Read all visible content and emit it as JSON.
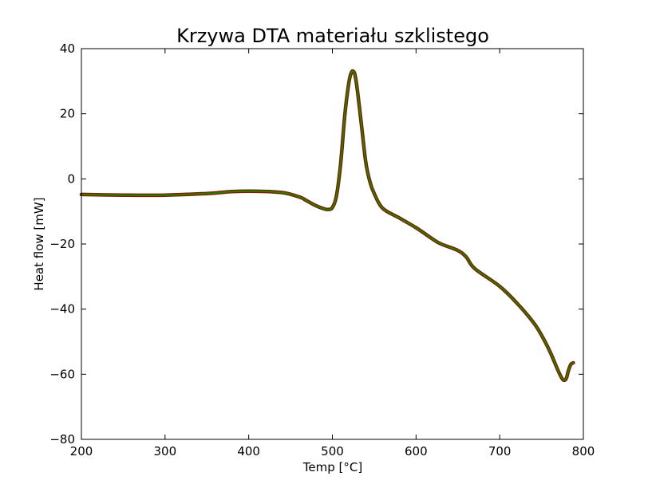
{
  "chart_data": {
    "type": "line",
    "title": "Krzywa DTA materiału szklistego",
    "xlabel": "Temp [°C]",
    "ylabel": "Heat flow [mW]",
    "xlim": [
      200,
      800
    ],
    "ylim": [
      -80,
      40
    ],
    "xticks": [
      200,
      300,
      400,
      500,
      600,
      700,
      800
    ],
    "yticks": [
      -80,
      -60,
      -40,
      -20,
      0,
      20,
      40
    ],
    "xtick_labels": [
      "200",
      "300",
      "400",
      "500",
      "600",
      "700",
      "800"
    ],
    "ytick_labels": [
      "−80",
      "−60",
      "−40",
      "−20",
      "0",
      "20",
      "40"
    ],
    "grid": false,
    "series": [
      {
        "color_outer": "#7a1e00",
        "color_inner": "#2f7a00",
        "x": [
          200,
          250,
          300,
          350,
          380,
          410,
          440,
          460,
          470,
          480,
          490,
          495,
          500,
          505,
          510,
          515,
          520,
          523,
          525,
          527,
          530,
          535,
          540,
          545,
          550,
          560,
          580,
          600,
          620,
          630,
          650,
          660,
          670,
          700,
          720,
          740,
          750,
          760,
          770,
          775,
          778,
          780,
          782,
          785,
          788
        ],
        "y": [
          -4.8,
          -5.0,
          -5.0,
          -4.5,
          -3.9,
          -3.8,
          -4.2,
          -5.5,
          -6.8,
          -8.2,
          -9.2,
          -9.4,
          -8.8,
          -5,
          5,
          20,
          30,
          32.8,
          33,
          32,
          27,
          16,
          5,
          -1,
          -4.5,
          -9,
          -12,
          -15,
          -18.5,
          -20,
          -22,
          -24,
          -27.5,
          -33,
          -38,
          -44,
          -48,
          -53,
          -59,
          -61.5,
          -61.8,
          -61,
          -59,
          -57,
          -56.5
        ]
      }
    ]
  }
}
